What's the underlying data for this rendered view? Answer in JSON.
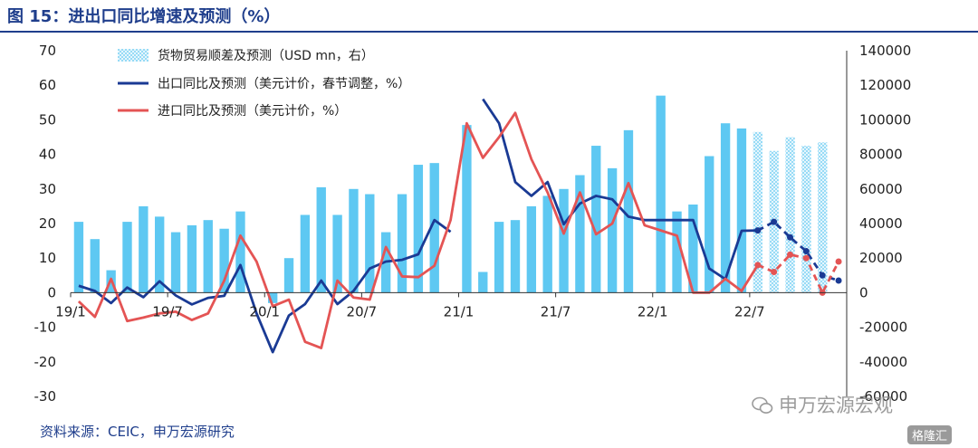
{
  "header": {
    "title": "图 15：进出口同比增速及预测（%）"
  },
  "footer": {
    "source": "资料来源：CEIC，申万宏源研究"
  },
  "watermark": {
    "text": "申万宏源宏观",
    "badge": "格隆汇"
  },
  "chart_data": {
    "type": "bar",
    "categories": [
      "19/1",
      "19/2",
      "19/3",
      "19/4",
      "19/5",
      "19/6",
      "19/7",
      "19/8",
      "19/9",
      "19/10",
      "19/11",
      "19/12",
      "20/1",
      "20/2",
      "20/3",
      "20/4",
      "20/5",
      "20/6",
      "20/7",
      "20/8",
      "20/9",
      "20/10",
      "20/11",
      "20/12",
      "21/1",
      "21/2",
      "21/3",
      "21/4",
      "21/5",
      "21/6",
      "21/7",
      "21/8",
      "21/9",
      "21/10",
      "21/11",
      "21/12",
      "22/1",
      "22/2",
      "22/3",
      "22/4",
      "22/5",
      "22/6",
      "22/7",
      "22/8",
      "22/9",
      "22/10",
      "22/11",
      "22/12"
    ],
    "x_tick_labels": [
      "19/1",
      "19/7",
      "20/1",
      "20/7",
      "21/1",
      "21/7",
      "22/1",
      "22/7"
    ],
    "x_tick_indices": [
      0,
      6,
      12,
      18,
      24,
      30,
      36,
      42
    ],
    "y_left": {
      "lim": [
        -30,
        70
      ],
      "ticks": [
        -30,
        -20,
        -10,
        0,
        10,
        20,
        30,
        40,
        50,
        60,
        70
      ]
    },
    "y_right": {
      "lim": [
        -60000,
        140000
      ],
      "ticks": [
        -60000,
        -40000,
        -20000,
        0,
        20000,
        40000,
        60000,
        80000,
        100000,
        120000,
        140000
      ]
    },
    "legend_position": "top-left",
    "series": [
      {
        "name": "货物贸易顺差及预测（USD mn，右）",
        "type": "bar",
        "axis": "right",
        "color": "#5ec8f2",
        "forecast_from_index": 42,
        "values": [
          41000,
          31000,
          13000,
          41000,
          50000,
          44000,
          35000,
          39000,
          42000,
          37000,
          47000,
          null,
          -6000,
          20000,
          45000,
          61000,
          45000,
          60000,
          57000,
          35000,
          57000,
          74000,
          75000,
          null,
          97000,
          12000,
          41000,
          42000,
          50000,
          56000,
          60000,
          68000,
          85000,
          72000,
          94000,
          null,
          114000,
          47000,
          51000,
          79000,
          98000,
          95000,
          93000,
          82000,
          90000,
          85000,
          87000,
          null
        ]
      },
      {
        "name": "出口同比及预测（美元计价，春节调整，%）",
        "type": "line",
        "axis": "left",
        "color": "#1a3a94",
        "forecast_from_index": 42,
        "values": [
          2,
          0.5,
          -3,
          1.5,
          -1.3,
          3.3,
          -0.8,
          -3.4,
          -1.5,
          -0.9,
          8,
          -6,
          -17.2,
          -6.6,
          -3.3,
          3.5,
          -3.3,
          0.5,
          7,
          9,
          9.5,
          11.1,
          21,
          17.6,
          null,
          56,
          49,
          32,
          28,
          32,
          19.8,
          25.8,
          28,
          27,
          22,
          21,
          21,
          21,
          21,
          7,
          3.9,
          17.9,
          18,
          20.5,
          16,
          12,
          5,
          3.5
        ]
      },
      {
        "name": "进口同比及预测（美元计价，%）",
        "type": "line",
        "axis": "left",
        "color": "#e45454",
        "forecast_from_index": 42,
        "values": [
          -2.5,
          -7,
          4,
          -8.2,
          -7.2,
          -6,
          -5.5,
          -7.9,
          -6,
          3.5,
          16.5,
          9,
          -3.9,
          -2,
          -14.2,
          -16,
          3.5,
          -1.4,
          -2,
          13.2,
          4.7,
          4.5,
          7.8,
          21,
          49,
          39,
          45,
          52,
          38.6,
          29,
          17.1,
          29,
          16.9,
          20,
          31.7,
          19.5,
          18,
          16.5,
          0,
          0,
          4,
          0.5,
          8,
          6,
          11,
          10,
          0,
          9
        ]
      }
    ]
  }
}
